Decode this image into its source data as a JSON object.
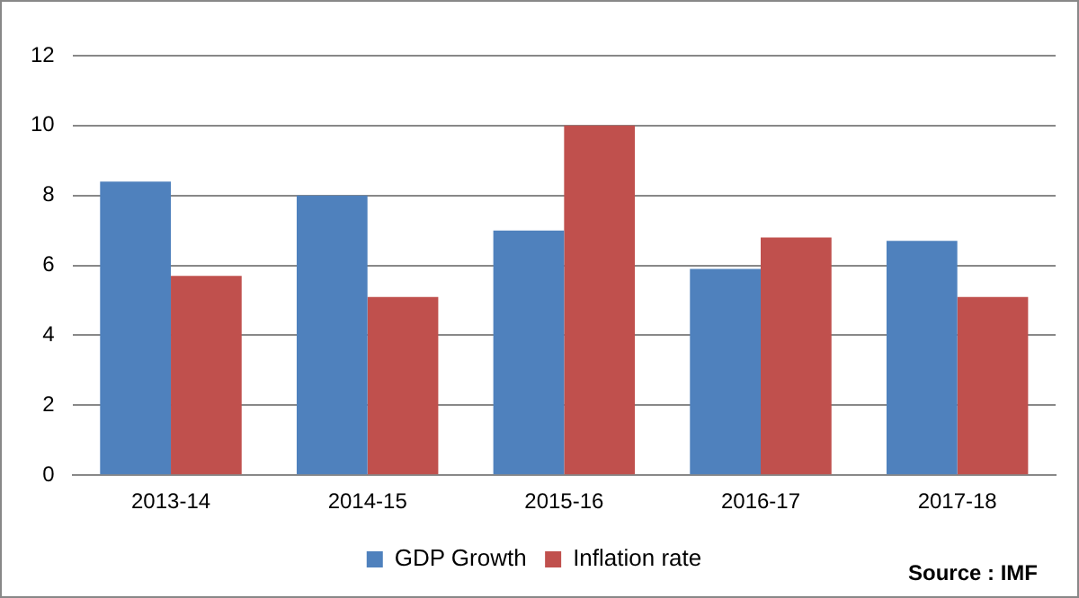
{
  "chart_data": {
    "type": "bar",
    "categories": [
      "2013-14",
      "2014-15",
      "2015-16",
      "2016-17",
      "2017-18"
    ],
    "series": [
      {
        "name": "GDP Growth",
        "color": "#4f81bd",
        "values": [
          8.4,
          8.0,
          7.0,
          5.9,
          6.7
        ]
      },
      {
        "name": "Inflation rate",
        "color": "#c0504d",
        "values": [
          5.7,
          5.1,
          10.0,
          6.8,
          5.1
        ]
      }
    ],
    "ylim": [
      0,
      12
    ],
    "yticks": [
      0,
      2,
      4,
      6,
      8,
      10,
      12
    ],
    "grid": "y",
    "legend": "bottom",
    "annotations": [
      "Source : IMF"
    ]
  }
}
